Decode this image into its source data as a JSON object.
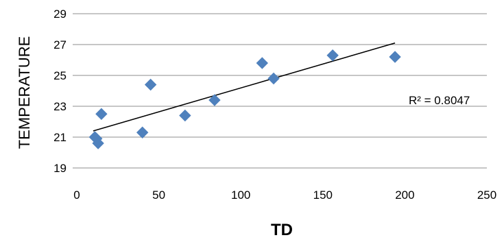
{
  "chart_data": {
    "type": "scatter",
    "xlabel": "TD",
    "ylabel": "TEMPERATURE",
    "xlim": [
      0,
      250
    ],
    "ylim": [
      19,
      29
    ],
    "x_ticks": [
      0,
      50,
      100,
      150,
      200,
      250
    ],
    "y_ticks": [
      19,
      21,
      23,
      25,
      27,
      29
    ],
    "grid": true,
    "legend": "none",
    "series": [
      {
        "color": "#4f81bd",
        "marker": "diamond",
        "points": [
          {
            "x": 11,
            "y": 21.0
          },
          {
            "x": 12,
            "y": 20.9
          },
          {
            "x": 13,
            "y": 20.6
          },
          {
            "x": 15,
            "y": 22.5
          },
          {
            "x": 40,
            "y": 21.3
          },
          {
            "x": 45,
            "y": 24.4
          },
          {
            "x": 66,
            "y": 22.4
          },
          {
            "x": 84,
            "y": 23.4
          },
          {
            "x": 113,
            "y": 25.8
          },
          {
            "x": 120,
            "y": 24.8
          },
          {
            "x": 156,
            "y": 26.3
          },
          {
            "x": 194,
            "y": 26.2
          }
        ]
      }
    ],
    "trendline": {
      "type": "linear",
      "color": "#000000",
      "x_start": 10,
      "y_start": 21.4,
      "x_end": 194,
      "y_end": 27.1
    },
    "annotation": {
      "text": "R² = 0.8047"
    }
  }
}
